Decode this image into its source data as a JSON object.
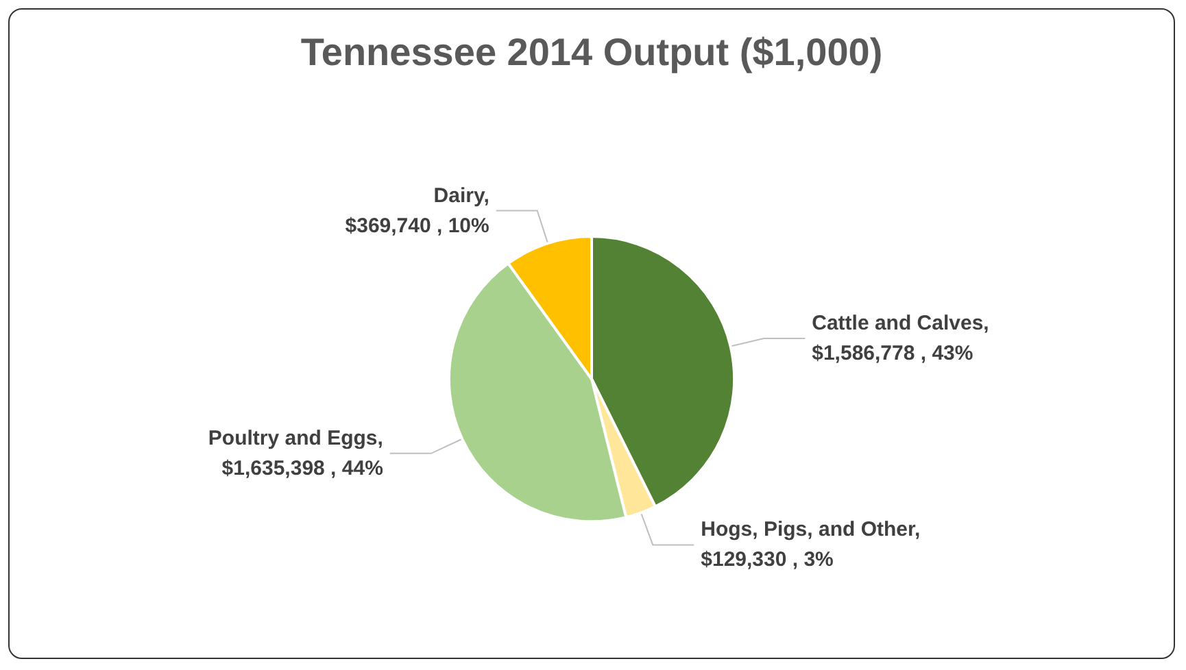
{
  "chart_data": {
    "type": "pie",
    "title": "Tennessee 2014 Output ($1,000)",
    "categories": [
      "Cattle and Calves",
      "Hogs, Pigs, and Other",
      "Poultry and Eggs",
      "Dairy"
    ],
    "values": [
      1586778,
      129330,
      1635398,
      369740
    ],
    "colors": [
      "#548235",
      "#ffe699",
      "#a9d18e",
      "#ffc000"
    ],
    "value_labels": [
      ", $1,586,778 , 43%",
      ", $129,330 , 3%",
      ", $1,635,398 , 44%",
      ", $369,740 , 10%"
    ],
    "legend": false
  }
}
